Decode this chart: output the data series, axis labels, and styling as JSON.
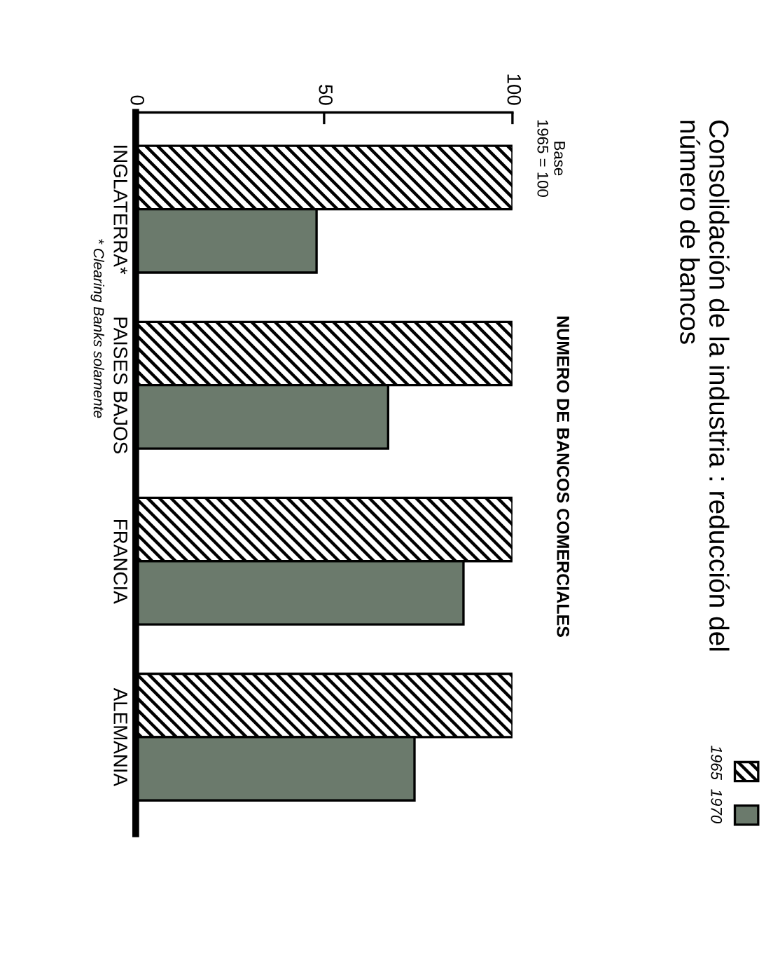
{
  "chart_data": {
    "type": "bar",
    "orientation": "horizontal",
    "title": "Consolidación de la industria : reducción del\nnúmero de bancos",
    "subtitle": "NUMERO DE BANCOS COMERCIALES",
    "categories": [
      "INGLATERRA*",
      "PAISES BAJOS",
      "FRANCIA",
      "ALEMANIA"
    ],
    "series": [
      {
        "name": "1965",
        "color": "#000000",
        "values": [
          100,
          100,
          100,
          100
        ]
      },
      {
        "name": "1970",
        "color": "#6b7a6c",
        "values": [
          48,
          67,
          87,
          74
        ]
      }
    ],
    "xlim": [
      0,
      100
    ],
    "xticks": [
      0,
      50,
      100
    ],
    "annotations": [
      "Base\n1965 = 100",
      "* Clearing Banks solamente"
    ],
    "legend": "bottom right",
    "grid": false
  }
}
